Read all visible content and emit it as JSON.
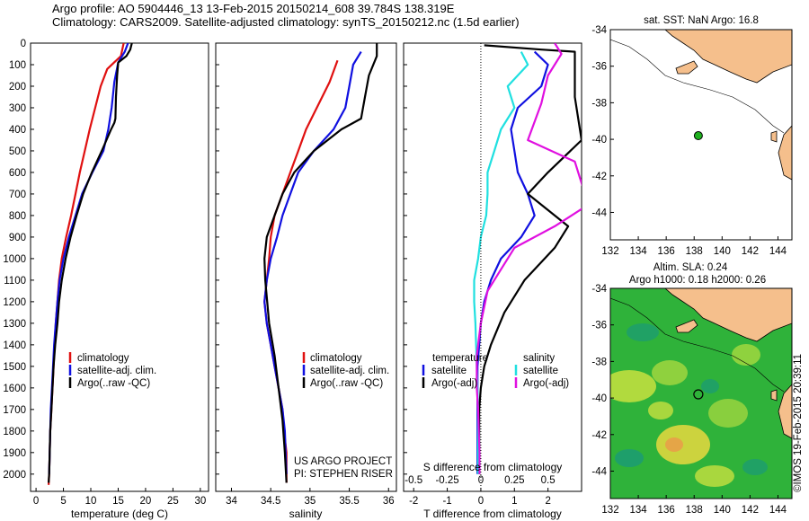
{
  "header": {
    "line1": "Argo profile: AO 5904446_13 13-Feb-2015 20150214_608 39.784S 138.319E",
    "line2": "Climatology: CARS2009. Satellite-adjusted climatology: synTS_20150212.nc (1.5d earlier)"
  },
  "colors": {
    "climatology": "#e01010",
    "satellite": "#1010e0",
    "argo": "#000000",
    "sat_salinity": "#20e0e0",
    "argo_salinity_adj": "#e010e0",
    "land": "#f5bf8c"
  },
  "chart_data": [
    {
      "type": "line",
      "name": "temperature-panel",
      "xlabel": "temperature (deg C)",
      "ylabel": "",
      "xlim": [
        -1,
        31.5
      ],
      "ylim": [
        2080,
        0
      ],
      "xticks": [
        0,
        5,
        10,
        15,
        20,
        25,
        30
      ],
      "yticks": [
        0,
        100,
        200,
        300,
        400,
        500,
        600,
        700,
        800,
        900,
        1000,
        1100,
        1200,
        1300,
        1400,
        1500,
        1600,
        1700,
        1800,
        1900,
        2000
      ],
      "legend": [
        "climatology",
        "satellite-adj. clim.",
        "Argo(..raw -QC)"
      ],
      "series": [
        {
          "key": "clim",
          "x": [
            16,
            15.5,
            13,
            11.8,
            10.8,
            9.8,
            8.9,
            8,
            7.2,
            6.4,
            5.5,
            4.7,
            4.2,
            3.9,
            3.6,
            3.4,
            3.2,
            3.0,
            2.8,
            2.6,
            2.5,
            2.4,
            2.3
          ],
          "y": [
            0,
            60,
            120,
            200,
            300,
            400,
            500,
            600,
            700,
            800,
            900,
            1000,
            1100,
            1200,
            1300,
            1400,
            1500,
            1600,
            1700,
            1800,
            1900,
            2000,
            2050
          ]
        },
        {
          "key": "sat",
          "x": [
            16.8,
            16.2,
            15,
            14.3,
            13.8,
            13.2,
            12.3,
            10.3,
            8.4,
            7.2,
            6,
            5,
            4.3,
            3.9,
            3.6,
            3.3,
            3.1,
            2.9,
            2.7,
            2.6,
            2.5,
            2.4
          ],
          "y": [
            0,
            40,
            90,
            180,
            300,
            400,
            500,
            600,
            700,
            800,
            900,
            1000,
            1100,
            1200,
            1300,
            1400,
            1500,
            1600,
            1700,
            1800,
            1900,
            2000
          ]
        },
        {
          "key": "argo",
          "x": [
            17.5,
            17.2,
            16.5,
            15,
            14.8,
            14.6,
            14.5,
            14.3,
            13.7,
            12,
            10.2,
            8.6,
            7.4,
            6.3,
            5.4,
            4.7,
            4.2,
            3.9,
            3.5,
            3.2,
            3.0,
            2.8,
            2.6,
            2.5,
            2.4,
            2.3
          ],
          "y": [
            0,
            30,
            60,
            90,
            150,
            250,
            350,
            370,
            400,
            500,
            600,
            700,
            800,
            900,
            1000,
            1100,
            1200,
            1300,
            1400,
            1500,
            1600,
            1700,
            1800,
            1900,
            2000,
            2040
          ]
        }
      ]
    },
    {
      "type": "line",
      "name": "salinity-panel",
      "xlabel": "salinity",
      "ylabel": "",
      "xlim": [
        33.8,
        36.1
      ],
      "ylim": [
        2080,
        0
      ],
      "xticks": [
        34,
        34.5,
        35,
        35.5,
        36
      ],
      "legend": [
        "climatology",
        "satellite-adj. clim.",
        "Argo(..raw -QC)"
      ],
      "series": [
        {
          "key": "clim",
          "x": [
            35.35,
            35.25,
            35.1,
            34.95,
            34.85,
            34.75,
            34.65,
            34.55,
            34.5,
            34.48,
            34.45,
            34.42,
            34.45,
            34.5,
            34.55,
            34.6,
            34.65,
            34.67,
            34.7,
            34.7
          ],
          "y": [
            80,
            180,
            290,
            400,
            500,
            600,
            700,
            800,
            900,
            1000,
            1100,
            1200,
            1300,
            1400,
            1500,
            1600,
            1700,
            1800,
            1900,
            2040
          ]
        },
        {
          "key": "sat",
          "x": [
            35.65,
            35.55,
            35.5,
            35.45,
            35.3,
            35.05,
            34.85,
            34.75,
            34.65,
            34.58,
            34.5,
            34.45,
            34.42,
            34.45,
            34.5,
            34.55,
            34.6,
            34.65,
            34.68,
            34.7
          ],
          "y": [
            40,
            100,
            200,
            300,
            400,
            500,
            600,
            700,
            800,
            900,
            1000,
            1100,
            1200,
            1300,
            1400,
            1500,
            1600,
            1700,
            1800,
            2000
          ]
        },
        {
          "key": "argo",
          "x": [
            35.85,
            35.85,
            35.75,
            35.7,
            35.65,
            35.4,
            35.05,
            34.8,
            34.65,
            34.55,
            34.45,
            34.42,
            34.43,
            34.48,
            34.55,
            34.6,
            34.65,
            34.68,
            34.7
          ],
          "y": [
            0,
            60,
            150,
            250,
            350,
            400,
            500,
            600,
            700,
            800,
            900,
            1000,
            1100,
            1300,
            1450,
            1600,
            1750,
            1900,
            2040
          ]
        }
      ]
    },
    {
      "type": "line",
      "name": "difference-panel",
      "xlabel": "T difference from climatology",
      "xlabel2": "S difference from climatology",
      "xlim": [
        -2.3,
        3.0
      ],
      "ylim": [
        2080,
        0
      ],
      "xticks": [
        -2,
        -1,
        0,
        1,
        2
      ],
      "xticks_s": [
        "-0.5",
        "-0.25",
        "0",
        "0.25",
        "0.5"
      ],
      "legend": {
        "temperature_header": "temperature",
        "salinity_header": "salinity",
        "items": [
          "satellite",
          "Argo(-adj)",
          "satellite",
          "Argo(-adj)"
        ]
      },
      "series": [
        {
          "key": "t_sat",
          "x": [
            1.6,
            2.0,
            1.8,
            1.1,
            0.9,
            1.0,
            1.1,
            1.4,
            1.6,
            1.2,
            0.6,
            0.3,
            0.1,
            0.0,
            -0.05,
            -0.1,
            -0.1,
            -0.1,
            -0.1,
            -0.1
          ],
          "y": [
            40,
            100,
            200,
            300,
            400,
            500,
            600,
            700,
            800,
            900,
            1000,
            1100,
            1200,
            1300,
            1400,
            1500,
            1600,
            1700,
            1800,
            2000
          ]
        },
        {
          "key": "t_argo",
          "x": [
            0.1,
            1.8,
            2.8,
            2.8,
            2.8,
            2.8,
            3.0,
            2.0,
            1.4,
            2.6,
            2.2,
            1.3,
            0.7,
            0.3,
            0.1,
            0.0,
            -0.05,
            -0.05,
            -0.05
          ],
          "y": [
            10,
            30,
            40,
            100,
            150,
            250,
            450,
            600,
            700,
            850,
            950,
            1100,
            1250,
            1400,
            1500,
            1600,
            1700,
            1900,
            2000
          ]
        },
        {
          "key": "s_sat",
          "x": [
            0.3,
            0.35,
            0.2,
            0.25,
            0.15,
            0.1,
            0.05,
            0.05,
            0.04,
            0.0,
            -0.02,
            -0.05,
            -0.05,
            -0.04,
            -0.03,
            -0.02,
            -0.02
          ],
          "y": [
            40,
            100,
            200,
            300,
            400,
            500,
            600,
            700,
            800,
            900,
            1000,
            1100,
            1200,
            1300,
            1500,
            1700,
            2000
          ]
        },
        {
          "key": "s_argo",
          "x": [
            0.55,
            0.6,
            0.5,
            0.45,
            0.35,
            0.7,
            0.8,
            0.55,
            0.25,
            0.15,
            0.05,
            0.0,
            -0.03,
            -0.03,
            -0.02,
            -0.01,
            -0.01
          ],
          "y": [
            0,
            50,
            150,
            280,
            450,
            550,
            750,
            850,
            950,
            1050,
            1150,
            1300,
            1450,
            1600,
            1700,
            1900,
            2000
          ]
        }
      ]
    }
  ],
  "map_top": {
    "title": "sat. SST: NaN Argo: 16.8",
    "lonlim": [
      132,
      145
    ],
    "latlim": [
      -45.5,
      -34
    ],
    "xticks": [
      132,
      134,
      136,
      138,
      140,
      142,
      144
    ],
    "yticks": [
      -34,
      -36,
      -38,
      -40,
      -42,
      -44
    ],
    "float_position": {
      "lon": 138.3,
      "lat": -39.8
    }
  },
  "map_bottom": {
    "title1": "Altim. SLA: 0.24",
    "title2": "Argo h1000: 0.18 h2000: 0.26",
    "lonlim": [
      132,
      145
    ],
    "latlim": [
      -45.5,
      -34
    ],
    "xticks": [
      132,
      134,
      136,
      138,
      140,
      142,
      144
    ],
    "yticks": [
      -34,
      -36,
      -38,
      -40,
      -42,
      -44
    ],
    "float_position": {
      "lon": 138.3,
      "lat": -39.8
    }
  },
  "credits": {
    "us_argo": "US ARGO PROJECT",
    "pi": "PI: STEPHEN RISER",
    "imos": "©IMOS 19-Feb-2015 20:39:11"
  }
}
